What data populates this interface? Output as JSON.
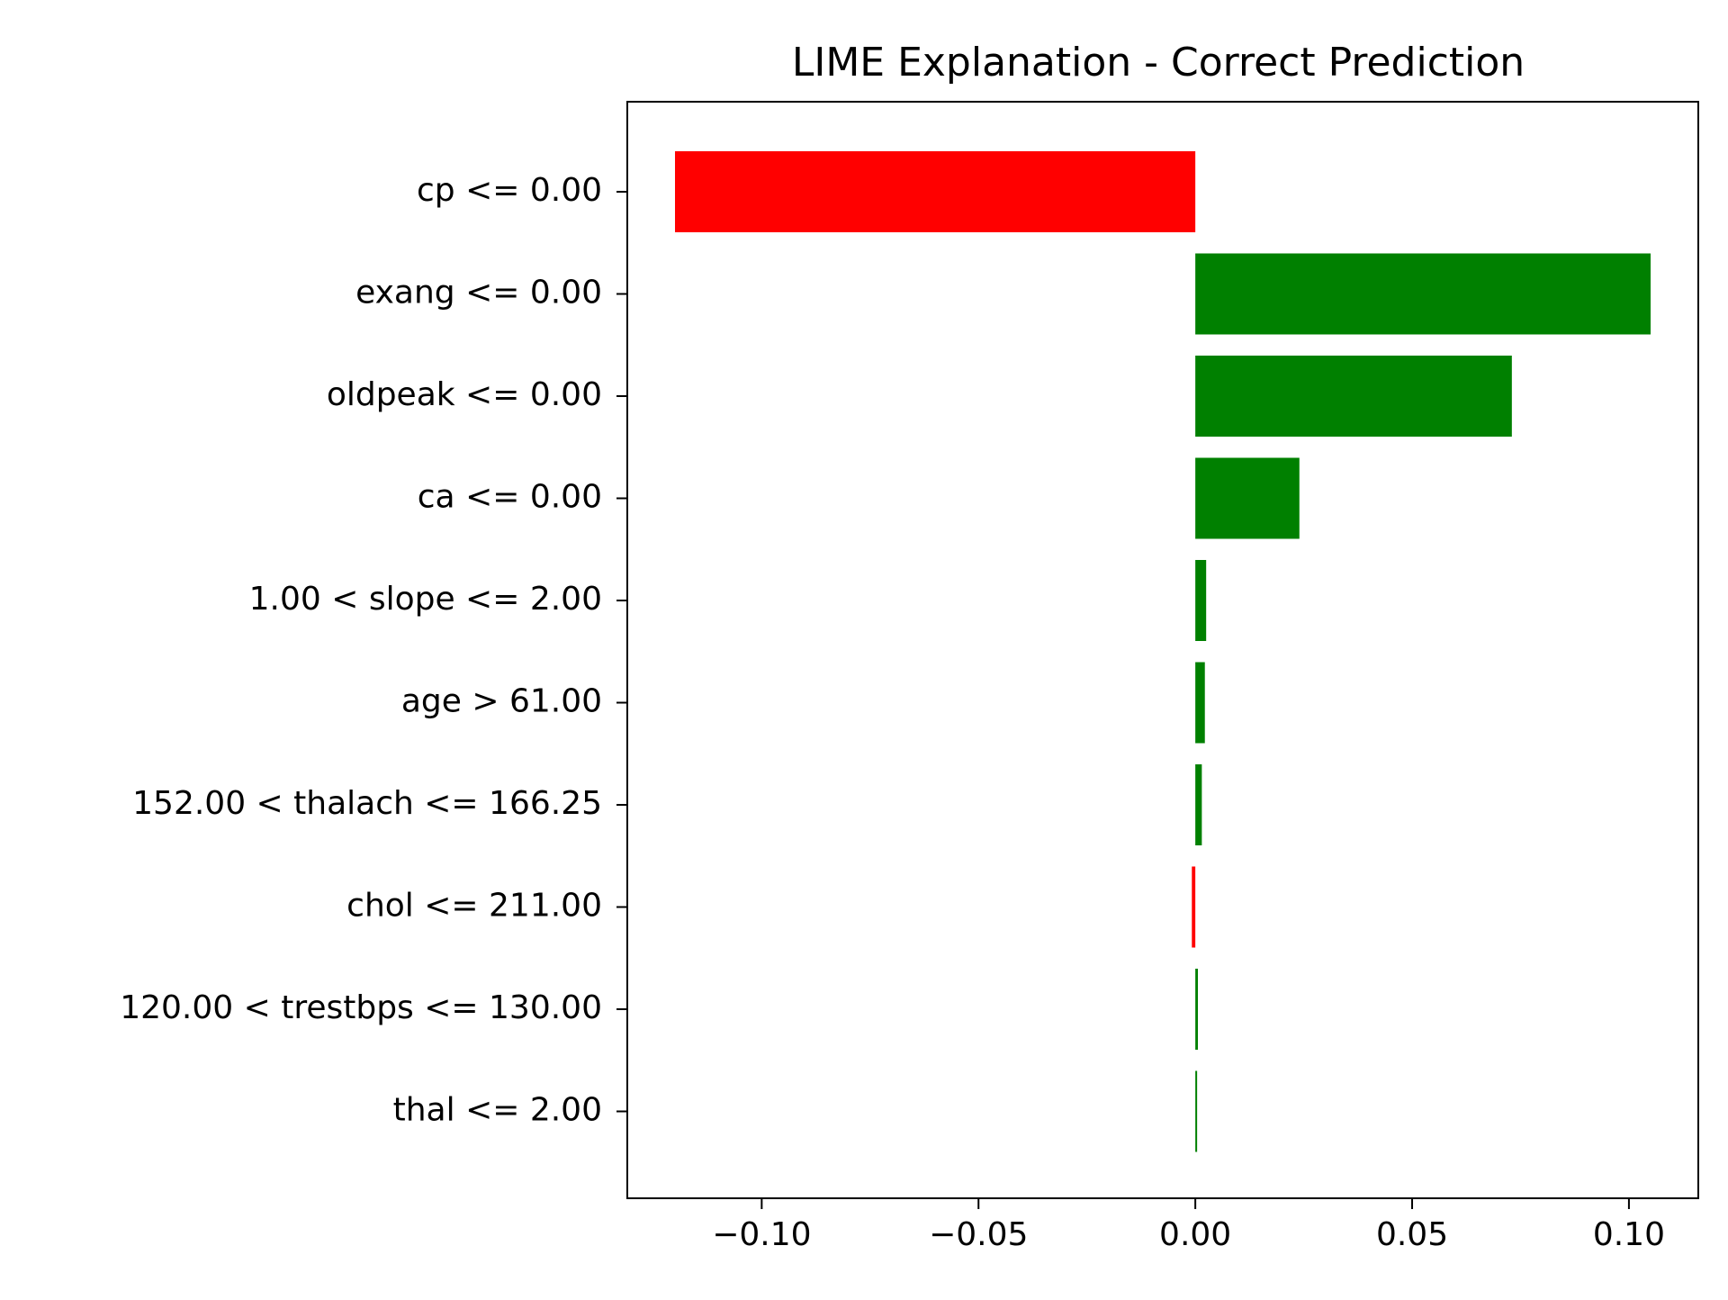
{
  "chart_data": {
    "type": "bar",
    "orientation": "horizontal",
    "title": "LIME Explanation - Correct Prediction",
    "xlabel": "",
    "ylabel": "",
    "xlim": [
      -0.131,
      0.116
    ],
    "grid": false,
    "legend": "none",
    "categories": [
      "cp <= 0.00",
      "exang <= 0.00",
      "oldpeak <= 0.00",
      "ca <= 0.00",
      "1.00 < slope <= 2.00",
      "age > 61.00",
      "152.00 < thalach <= 166.25",
      "chol <= 211.00",
      "120.00 < trestbps <= 130.00",
      "thal <= 2.00"
    ],
    "values": [
      -0.12,
      0.105,
      0.073,
      0.024,
      0.0025,
      0.0022,
      0.0015,
      -0.0008,
      0.0006,
      0.0004
    ],
    "xticks": [
      -0.1,
      -0.05,
      0.0,
      0.05,
      0.1
    ],
    "xtick_labels": [
      "−0.10",
      "−0.05",
      "0.00",
      "0.05",
      "0.10"
    ],
    "colors": {
      "positive": "#008000",
      "negative": "#ff0000",
      "axis": "#000000"
    }
  }
}
